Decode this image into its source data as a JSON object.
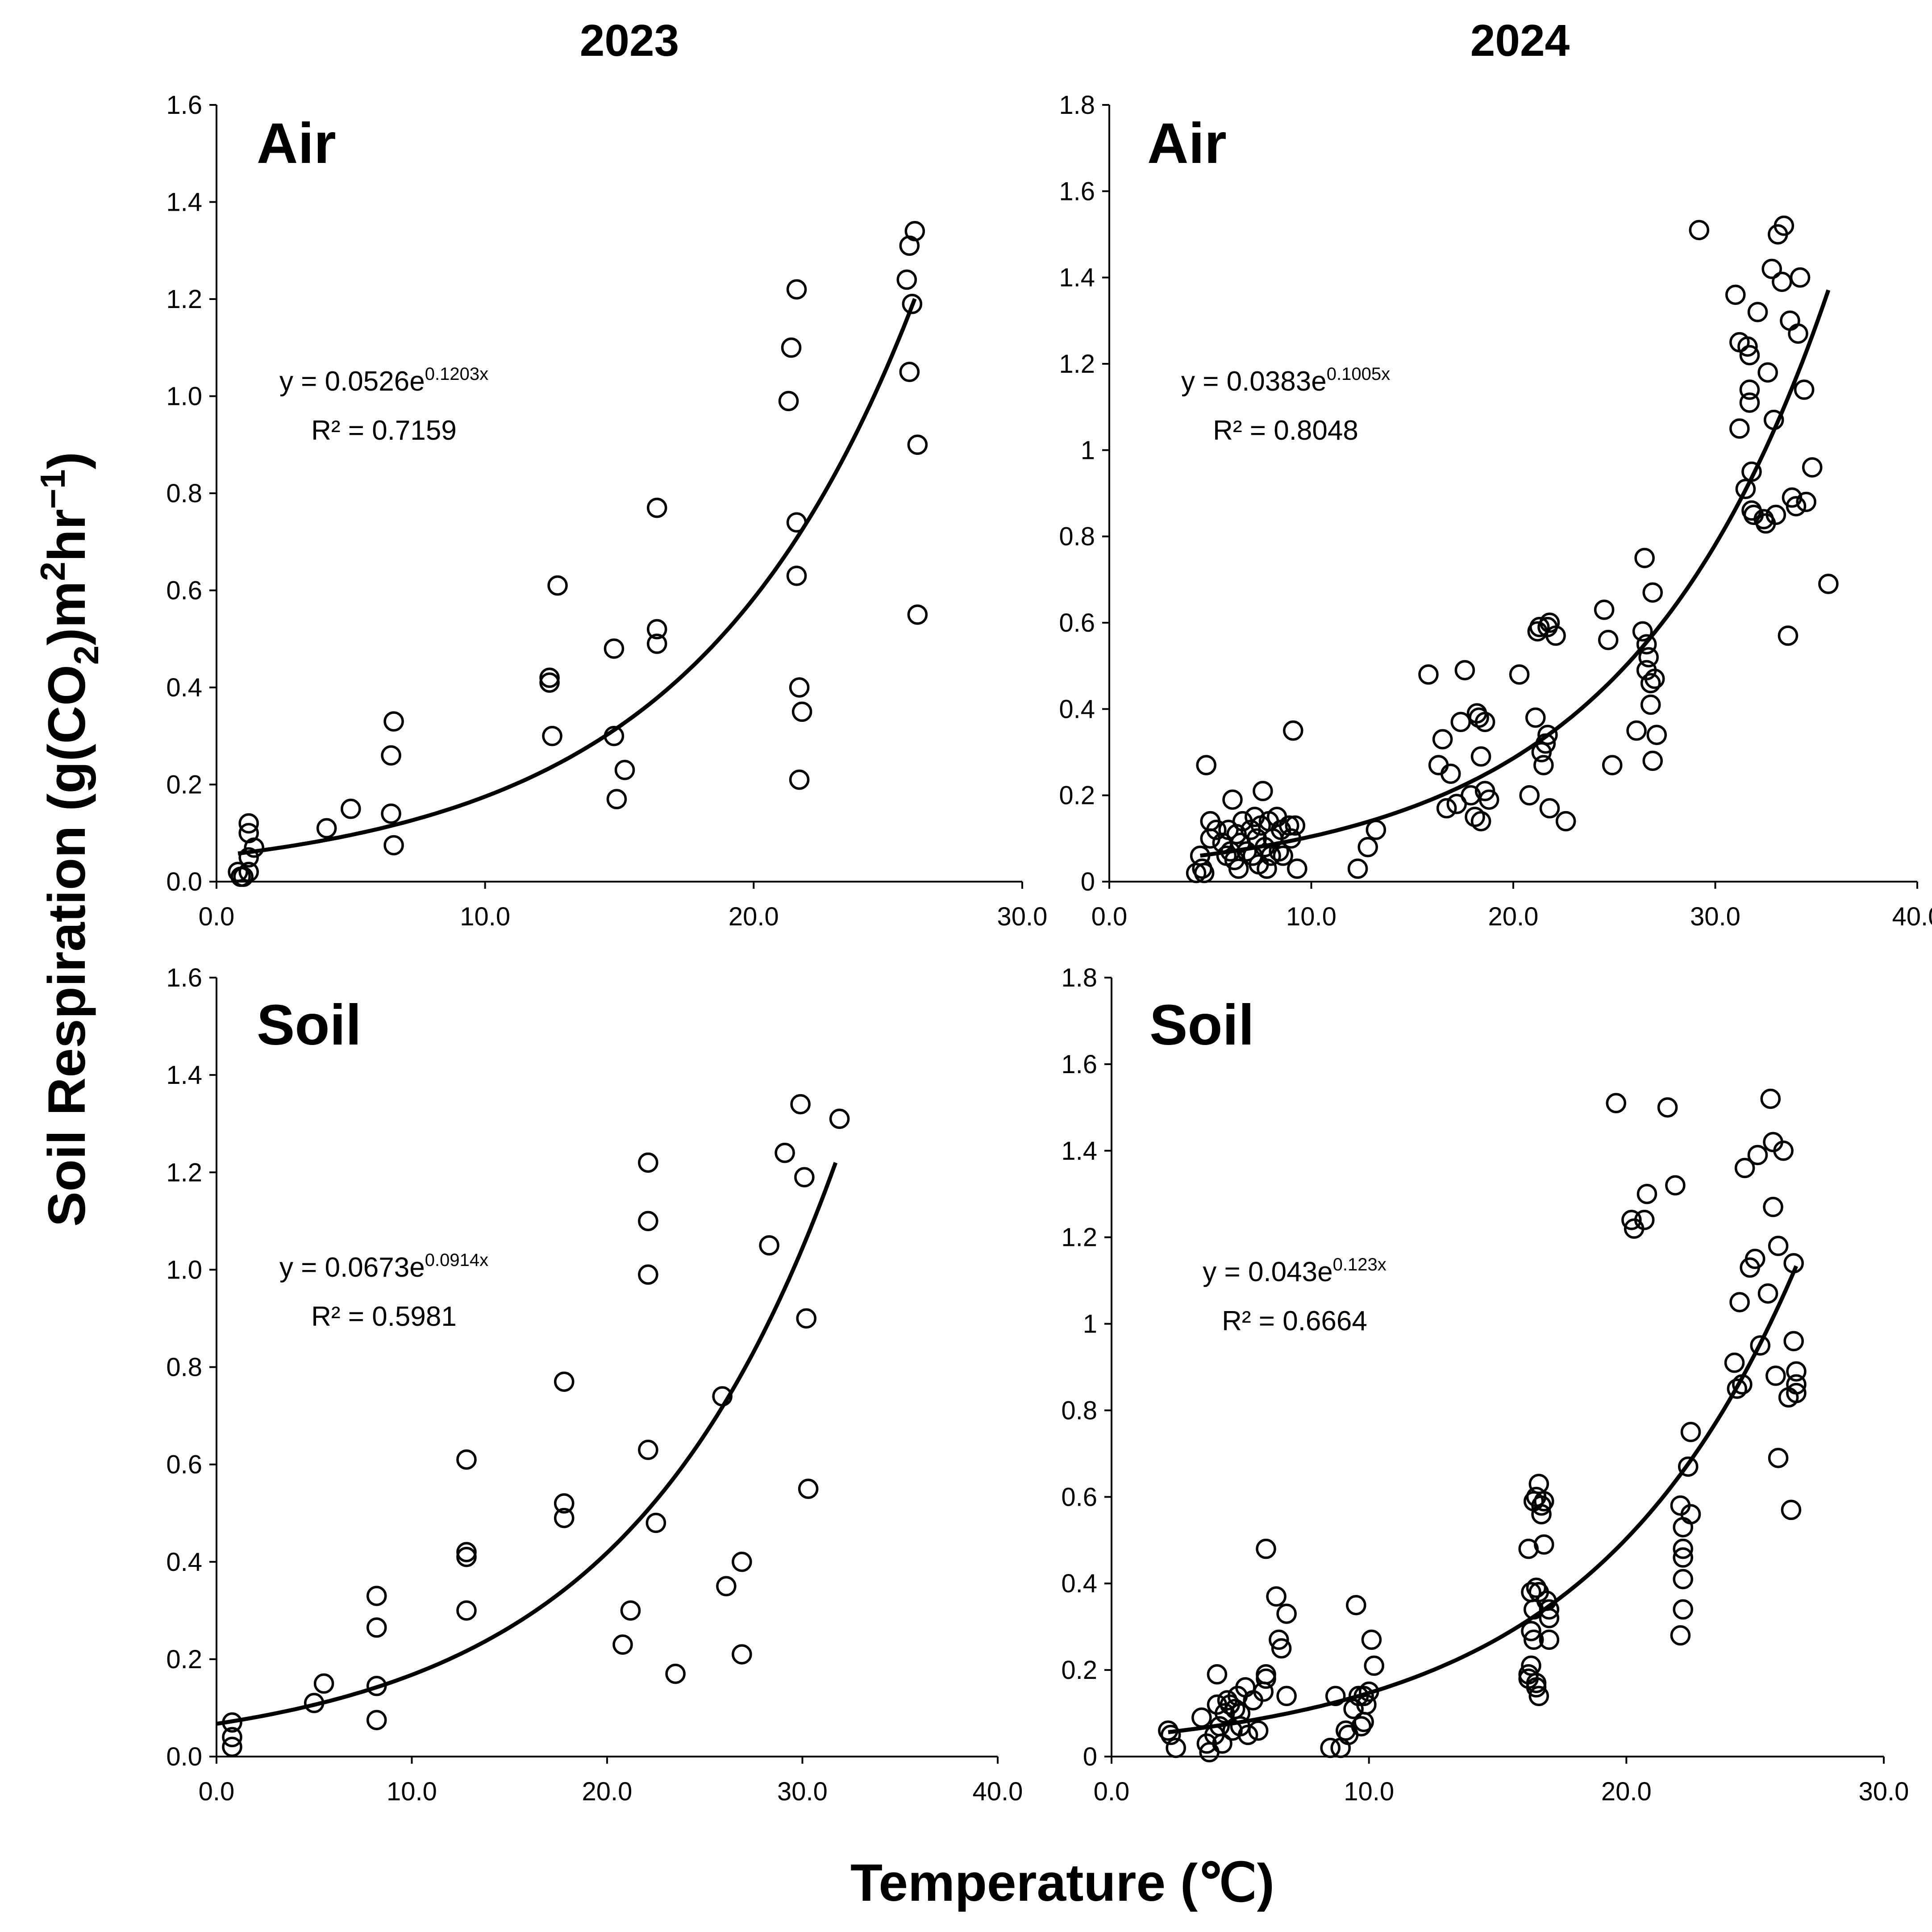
{
  "column_titles": [
    "2023",
    "2024"
  ],
  "y_axis_title": {
    "prefix": "Soil Respiration (g(CO",
    "sub": "2",
    "mid": ")m",
    "sup1": "2",
    "mid2": "hr",
    "sup2": "−1",
    "suffix": ")"
  },
  "x_axis_title": "Temperature (℃)",
  "chart_data": [
    {
      "type": "scatter",
      "title": "Air",
      "year": "2023",
      "xlim": [
        0,
        30
      ],
      "xticks": [
        0,
        10,
        20,
        30
      ],
      "xtick_labels": [
        "0.0",
        "10.0",
        "20.0",
        "30.0"
      ],
      "ylim": [
        0,
        1.6
      ],
      "yticks": [
        0,
        0.2,
        0.4,
        0.6,
        0.8,
        1.0,
        1.2,
        1.4,
        1.6
      ],
      "ytick_labels": [
        "0.0",
        "0.2",
        "0.4",
        "0.6",
        "0.8",
        "1.0",
        "1.2",
        "1.4",
        "1.6"
      ],
      "equation": {
        "text": "y = 0.0526e",
        "exponent": "0.1203x",
        "r2": "R² = 0.7159"
      },
      "fit": {
        "a": 0.0526,
        "b": 0.1203,
        "x_range": [
          0.8,
          26.0
        ]
      },
      "points": [
        [
          0.8,
          0.02
        ],
        [
          0.9,
          0.01
        ],
        [
          1.0,
          0.01
        ],
        [
          1.2,
          0.02
        ],
        [
          1.2,
          0.05
        ],
        [
          1.2,
          0.1
        ],
        [
          1.2,
          0.12
        ],
        [
          1.4,
          0.07
        ],
        [
          4.1,
          0.11
        ],
        [
          5.0,
          0.15
        ],
        [
          6.5,
          0.14
        ],
        [
          6.5,
          0.26
        ],
        [
          6.6,
          0.33
        ],
        [
          6.6,
          0.075
        ],
        [
          12.4,
          0.42
        ],
        [
          12.4,
          0.41
        ],
        [
          12.5,
          0.3
        ],
        [
          12.7,
          0.61
        ],
        [
          14.8,
          0.48
        ],
        [
          14.8,
          0.3
        ],
        [
          14.9,
          0.17
        ],
        [
          15.2,
          0.23
        ],
        [
          16.4,
          0.77
        ],
        [
          16.4,
          0.52
        ],
        [
          16.4,
          0.49
        ],
        [
          21.3,
          0.99
        ],
        [
          21.4,
          1.1
        ],
        [
          21.6,
          1.22
        ],
        [
          21.6,
          0.74
        ],
        [
          21.6,
          0.63
        ],
        [
          21.7,
          0.4
        ],
        [
          21.8,
          0.35
        ],
        [
          21.7,
          0.21
        ],
        [
          25.7,
          1.24
        ],
        [
          25.8,
          1.31
        ],
        [
          26.0,
          1.34
        ],
        [
          25.9,
          1.19
        ],
        [
          25.8,
          1.05
        ],
        [
          26.1,
          0.9
        ],
        [
          26.1,
          0.55
        ]
      ]
    },
    {
      "type": "scatter",
      "title": "Air",
      "year": "2024",
      "xlim": [
        0,
        40
      ],
      "xticks": [
        0,
        10,
        20,
        30,
        40
      ],
      "xtick_labels": [
        "0.0",
        "10.0",
        "20.0",
        "30.0",
        "40.0"
      ],
      "ylim": [
        0,
        1.8
      ],
      "yticks": [
        0,
        0.2,
        0.4,
        0.6,
        0.8,
        1.0,
        1.2,
        1.4,
        1.6,
        1.8
      ],
      "ytick_labels": [
        "0",
        "0.2",
        "0.4",
        "0.6",
        "0.8",
        "1",
        "1.2",
        "1.4",
        "1.6",
        "1.8"
      ],
      "equation": {
        "text": "y = 0.0383e",
        "exponent": "0.1005x",
        "r2": "R² = 0.8048"
      },
      "fit": {
        "a": 0.0383,
        "b": 0.1005,
        "x_range": [
          4.5,
          35.6
        ]
      },
      "points": [
        [
          4.3,
          0.02
        ],
        [
          4.5,
          0.06
        ],
        [
          4.6,
          0.03
        ],
        [
          4.7,
          0.02
        ],
        [
          4.8,
          0.27
        ],
        [
          5.0,
          0.1
        ],
        [
          5.0,
          0.14
        ],
        [
          5.3,
          0.12
        ],
        [
          5.6,
          0.09
        ],
        [
          5.8,
          0.06
        ],
        [
          5.9,
          0.12
        ],
        [
          6.0,
          0.07
        ],
        [
          6.1,
          0.19
        ],
        [
          6.2,
          0.05
        ],
        [
          6.3,
          0.11
        ],
        [
          6.4,
          0.03
        ],
        [
          6.5,
          0.09
        ],
        [
          6.6,
          0.14
        ],
        [
          6.8,
          0.07
        ],
        [
          7.0,
          0.12
        ],
        [
          7.1,
          0.06
        ],
        [
          7.2,
          0.15
        ],
        [
          7.3,
          0.1
        ],
        [
          7.4,
          0.04
        ],
        [
          7.5,
          0.13
        ],
        [
          7.6,
          0.21
        ],
        [
          7.7,
          0.08
        ],
        [
          7.8,
          0.03
        ],
        [
          7.9,
          0.14
        ],
        [
          8.0,
          0.06
        ],
        [
          8.1,
          0.1
        ],
        [
          8.3,
          0.15
        ],
        [
          8.4,
          0.07
        ],
        [
          8.5,
          0.12
        ],
        [
          8.6,
          0.06
        ],
        [
          8.9,
          0.13
        ],
        [
          9.0,
          0.1
        ],
        [
          9.1,
          0.35
        ],
        [
          9.2,
          0.13
        ],
        [
          9.3,
          0.03
        ],
        [
          12.3,
          0.03
        ],
        [
          12.8,
          0.08
        ],
        [
          13.2,
          0.12
        ],
        [
          15.8,
          0.48
        ],
        [
          16.3,
          0.27
        ],
        [
          16.5,
          0.33
        ],
        [
          16.7,
          0.17
        ],
        [
          16.9,
          0.25
        ],
        [
          17.2,
          0.18
        ],
        [
          17.4,
          0.37
        ],
        [
          17.6,
          0.49
        ],
        [
          17.9,
          0.2
        ],
        [
          18.1,
          0.15
        ],
        [
          18.2,
          0.39
        ],
        [
          18.3,
          0.38
        ],
        [
          18.4,
          0.14
        ],
        [
          18.4,
          0.29
        ],
        [
          18.6,
          0.37
        ],
        [
          18.6,
          0.21
        ],
        [
          18.8,
          0.19
        ],
        [
          20.3,
          0.48
        ],
        [
          20.8,
          0.2
        ],
        [
          21.1,
          0.38
        ],
        [
          21.2,
          0.58
        ],
        [
          21.3,
          0.59
        ],
        [
          21.4,
          0.3
        ],
        [
          21.5,
          0.27
        ],
        [
          21.6,
          0.32
        ],
        [
          21.7,
          0.34
        ],
        [
          21.7,
          0.59
        ],
        [
          21.8,
          0.6
        ],
        [
          21.8,
          0.17
        ],
        [
          22.1,
          0.57
        ],
        [
          22.6,
          0.14
        ],
        [
          24.5,
          0.63
        ],
        [
          24.7,
          0.56
        ],
        [
          24.9,
          0.27
        ],
        [
          26.1,
          0.35
        ],
        [
          26.4,
          0.58
        ],
        [
          26.5,
          0.75
        ],
        [
          26.6,
          0.55
        ],
        [
          26.6,
          0.49
        ],
        [
          26.7,
          0.52
        ],
        [
          26.8,
          0.41
        ],
        [
          26.8,
          0.46
        ],
        [
          26.9,
          0.28
        ],
        [
          26.9,
          0.67
        ],
        [
          27.0,
          0.47
        ],
        [
          27.1,
          0.34
        ],
        [
          29.2,
          1.51
        ],
        [
          31.0,
          1.36
        ],
        [
          31.2,
          1.05
        ],
        [
          31.2,
          1.25
        ],
        [
          31.5,
          0.91
        ],
        [
          31.6,
          1.24
        ],
        [
          31.7,
          1.11
        ],
        [
          31.7,
          1.14
        ],
        [
          31.7,
          1.22
        ],
        [
          31.8,
          0.95
        ],
        [
          31.8,
          0.86
        ],
        [
          31.9,
          0.85
        ],
        [
          32.1,
          1.32
        ],
        [
          32.4,
          0.84
        ],
        [
          32.5,
          0.83
        ],
        [
          32.6,
          1.18
        ],
        [
          32.8,
          1.42
        ],
        [
          32.9,
          1.07
        ],
        [
          33.0,
          0.85
        ],
        [
          33.1,
          1.5
        ],
        [
          33.3,
          1.39
        ],
        [
          33.4,
          1.52
        ],
        [
          33.6,
          0.57
        ],
        [
          33.7,
          1.3
        ],
        [
          33.8,
          0.89
        ],
        [
          34.0,
          0.87
        ],
        [
          34.1,
          1.27
        ],
        [
          34.2,
          1.4
        ],
        [
          34.4,
          1.14
        ],
        [
          34.5,
          0.88
        ],
        [
          34.8,
          0.96
        ],
        [
          35.6,
          0.69
        ]
      ]
    },
    {
      "type": "scatter",
      "title": "Soil",
      "year": "2023",
      "xlim": [
        0,
        40
      ],
      "xticks": [
        0,
        10,
        20,
        30,
        40
      ],
      "xtick_labels": [
        "0.0",
        "10.0",
        "20.0",
        "30.0",
        "40.0"
      ],
      "ylim": [
        0,
        1.6
      ],
      "yticks": [
        0,
        0.2,
        0.4,
        0.6,
        0.8,
        1.0,
        1.2,
        1.4,
        1.6
      ],
      "ytick_labels": [
        "0.0",
        "0.2",
        "0.4",
        "0.6",
        "0.8",
        "1.0",
        "1.2",
        "1.4",
        "1.6"
      ],
      "equation": {
        "text": "y = 0.0673e",
        "exponent": "0.0914x",
        "r2": "R² = 0.5981"
      },
      "fit": {
        "a": 0.0673,
        "b": 0.0914,
        "x_range": [
          0.0,
          31.7
        ]
      },
      "points": [
        [
          0.8,
          0.02
        ],
        [
          0.8,
          0.04
        ],
        [
          0.8,
          0.07
        ],
        [
          5.0,
          0.11
        ],
        [
          5.5,
          0.15
        ],
        [
          8.2,
          0.075
        ],
        [
          8.2,
          0.145
        ],
        [
          8.2,
          0.265
        ],
        [
          8.2,
          0.33
        ],
        [
          12.8,
          0.3
        ],
        [
          12.8,
          0.41
        ],
        [
          12.8,
          0.42
        ],
        [
          12.8,
          0.61
        ],
        [
          17.8,
          0.49
        ],
        [
          17.8,
          0.52
        ],
        [
          17.8,
          0.77
        ],
        [
          20.8,
          0.23
        ],
        [
          21.2,
          0.3
        ],
        [
          22.1,
          0.63
        ],
        [
          22.1,
          0.99
        ],
        [
          22.1,
          1.1
        ],
        [
          22.1,
          1.22
        ],
        [
          22.5,
          0.48
        ],
        [
          23.5,
          0.17
        ],
        [
          25.9,
          0.74
        ],
        [
          26.1,
          0.35
        ],
        [
          26.9,
          0.4
        ],
        [
          26.9,
          0.21
        ],
        [
          28.3,
          1.05
        ],
        [
          29.1,
          1.24
        ],
        [
          29.9,
          1.34
        ],
        [
          30.1,
          1.19
        ],
        [
          30.2,
          0.9
        ],
        [
          30.3,
          0.55
        ],
        [
          31.9,
          1.31
        ]
      ]
    },
    {
      "type": "scatter",
      "title": "Soil",
      "year": "2024",
      "xlim": [
        0,
        30
      ],
      "xticks": [
        0,
        10,
        20,
        30
      ],
      "xtick_labels": [
        "0.0",
        "10.0",
        "20.0",
        "30.0"
      ],
      "ylim": [
        0,
        1.8
      ],
      "yticks": [
        0,
        0.2,
        0.4,
        0.6,
        0.8,
        1.0,
        1.2,
        1.4,
        1.6,
        1.8
      ],
      "ytick_labels": [
        "0",
        "0.2",
        "0.4",
        "0.6",
        "0.8",
        "1",
        "1.2",
        "1.4",
        "1.6",
        "1.8"
      ],
      "equation": {
        "text": "y = 0.043e",
        "exponent": "0.123x",
        "r2": "R² = 0.6664"
      },
      "fit": {
        "a": 0.043,
        "b": 0.123,
        "x_range": [
          2.2,
          26.6
        ]
      },
      "points": [
        [
          2.2,
          0.06
        ],
        [
          2.3,
          0.05
        ],
        [
          2.5,
          0.02
        ],
        [
          3.5,
          0.09
        ],
        [
          3.7,
          0.03
        ],
        [
          3.8,
          0.01
        ],
        [
          4.0,
          0.05
        ],
        [
          4.1,
          0.12
        ],
        [
          4.1,
          0.19
        ],
        [
          4.2,
          0.07
        ],
        [
          4.3,
          0.03
        ],
        [
          4.4,
          0.1
        ],
        [
          4.5,
          0.13
        ],
        [
          4.6,
          0.12
        ],
        [
          4.7,
          0.06
        ],
        [
          4.8,
          0.11
        ],
        [
          4.9,
          0.14
        ],
        [
          5.0,
          0.1
        ],
        [
          5.0,
          0.07
        ],
        [
          5.2,
          0.16
        ],
        [
          5.3,
          0.05
        ],
        [
          5.5,
          0.13
        ],
        [
          5.7,
          0.06
        ],
        [
          5.9,
          0.15
        ],
        [
          6.0,
          0.18
        ],
        [
          6.0,
          0.19
        ],
        [
          6.0,
          0.48
        ],
        [
          6.4,
          0.37
        ],
        [
          6.5,
          0.27
        ],
        [
          6.6,
          0.25
        ],
        [
          6.8,
          0.33
        ],
        [
          6.8,
          0.14
        ],
        [
          8.5,
          0.02
        ],
        [
          8.7,
          0.14
        ],
        [
          8.9,
          0.02
        ],
        [
          9.1,
          0.06
        ],
        [
          9.2,
          0.05
        ],
        [
          9.4,
          0.11
        ],
        [
          9.5,
          0.35
        ],
        [
          9.6,
          0.14
        ],
        [
          9.7,
          0.07
        ],
        [
          9.8,
          0.08
        ],
        [
          9.8,
          0.14
        ],
        [
          9.9,
          0.12
        ],
        [
          10.0,
          0.15
        ],
        [
          10.1,
          0.27
        ],
        [
          10.2,
          0.21
        ],
        [
          16.2,
          0.48
        ],
        [
          16.2,
          0.18
        ],
        [
          16.2,
          0.19
        ],
        [
          16.3,
          0.38
        ],
        [
          16.3,
          0.29
        ],
        [
          16.3,
          0.21
        ],
        [
          16.4,
          0.27
        ],
        [
          16.4,
          0.34
        ],
        [
          16.4,
          0.59
        ],
        [
          16.5,
          0.39
        ],
        [
          16.5,
          0.6
        ],
        [
          16.5,
          0.17
        ],
        [
          16.5,
          0.16
        ],
        [
          16.6,
          0.63
        ],
        [
          16.6,
          0.14
        ],
        [
          16.6,
          0.38
        ],
        [
          16.7,
          0.58
        ],
        [
          16.7,
          0.56
        ],
        [
          16.8,
          0.49
        ],
        [
          16.8,
          0.59
        ],
        [
          16.9,
          0.36
        ],
        [
          17.0,
          0.32
        ],
        [
          17.0,
          0.27
        ],
        [
          17.0,
          0.34
        ],
        [
          19.6,
          1.51
        ],
        [
          20.2,
          1.24
        ],
        [
          20.3,
          1.22
        ],
        [
          20.7,
          1.24
        ],
        [
          20.8,
          1.3
        ],
        [
          21.6,
          1.5
        ],
        [
          21.9,
          1.32
        ],
        [
          22.1,
          0.58
        ],
        [
          22.1,
          0.28
        ],
        [
          22.2,
          0.53
        ],
        [
          22.2,
          0.48
        ],
        [
          22.2,
          0.46
        ],
        [
          22.2,
          0.41
        ],
        [
          22.2,
          0.34
        ],
        [
          22.4,
          0.67
        ],
        [
          22.5,
          0.56
        ],
        [
          22.5,
          0.75
        ],
        [
          24.2,
          0.91
        ],
        [
          24.3,
          0.85
        ],
        [
          24.4,
          1.05
        ],
        [
          24.5,
          0.86
        ],
        [
          24.6,
          1.36
        ],
        [
          24.8,
          1.13
        ],
        [
          25.0,
          1.15
        ],
        [
          25.1,
          1.39
        ],
        [
          25.2,
          0.95
        ],
        [
          25.5,
          1.07
        ],
        [
          25.6,
          1.52
        ],
        [
          25.7,
          1.42
        ],
        [
          25.7,
          1.27
        ],
        [
          25.8,
          0.88
        ],
        [
          25.9,
          1.18
        ],
        [
          25.9,
          0.69
        ],
        [
          26.1,
          1.4
        ],
        [
          26.3,
          0.83
        ],
        [
          26.4,
          0.57
        ],
        [
          26.5,
          1.14
        ],
        [
          26.5,
          0.96
        ],
        [
          26.6,
          0.84
        ],
        [
          26.6,
          0.86
        ],
        [
          26.6,
          0.89
        ]
      ]
    }
  ]
}
